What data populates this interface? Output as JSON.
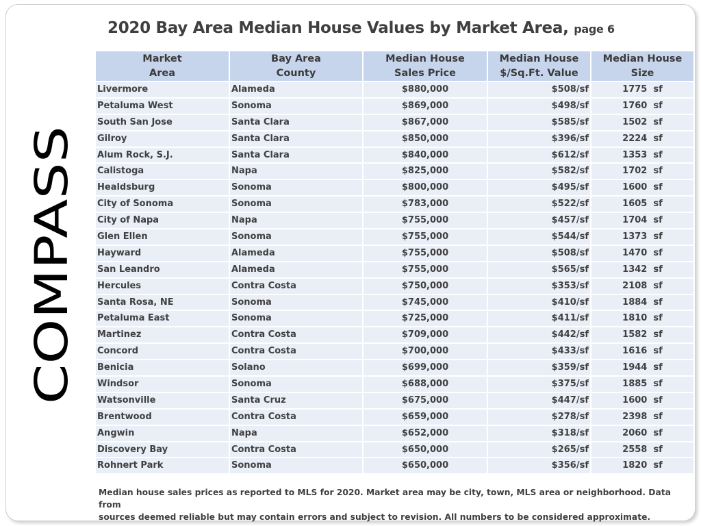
{
  "title": {
    "main": "2020 Bay Area Median House Values by Market Area,",
    "suffix": "page 6"
  },
  "logo_text": "COMPASS",
  "table": {
    "headers": [
      {
        "line1": "Market",
        "line2": "Area"
      },
      {
        "line1": "Bay Area",
        "line2": "County"
      },
      {
        "line1": "Median House",
        "line2": "Sales Price"
      },
      {
        "line1": "Median House",
        "line2": "$/Sq.Ft. Value"
      },
      {
        "line1": "Median House",
        "line2": "Size"
      }
    ],
    "rows": [
      [
        "Livermore",
        "Alameda",
        "$880,000",
        "$508/sf",
        "1775  sf"
      ],
      [
        "Petaluma West",
        "Sonoma",
        "$869,000",
        "$498/sf",
        "1760  sf"
      ],
      [
        "South San Jose",
        "Santa Clara",
        "$867,000",
        "$585/sf",
        "1502  sf"
      ],
      [
        "Gilroy",
        "Santa Clara",
        "$850,000",
        "$396/sf",
        "2224  sf"
      ],
      [
        "Alum Rock, S.J.",
        "Santa Clara",
        "$840,000",
        "$612/sf",
        "1353  sf"
      ],
      [
        "Calistoga",
        "Napa",
        "$825,000",
        "$582/sf",
        "1702  sf"
      ],
      [
        "Healdsburg",
        "Sonoma",
        "$800,000",
        "$495/sf",
        "1600  sf"
      ],
      [
        "City of Sonoma",
        "Sonoma",
        "$783,000",
        "$522/sf",
        "1605  sf"
      ],
      [
        "City of Napa",
        "Napa",
        "$755,000",
        "$457/sf",
        "1704  sf"
      ],
      [
        "Glen Ellen",
        "Sonoma",
        "$755,000",
        "$544/sf",
        "1373  sf"
      ],
      [
        "Hayward",
        "Alameda",
        "$755,000",
        "$508/sf",
        "1470  sf"
      ],
      [
        "San Leandro",
        "Alameda",
        "$755,000",
        "$565/sf",
        "1342  sf"
      ],
      [
        "Hercules",
        "Contra Costa",
        "$750,000",
        "$353/sf",
        "2108  sf"
      ],
      [
        "Santa Rosa, NE",
        "Sonoma",
        "$745,000",
        "$410/sf",
        "1884  sf"
      ],
      [
        "Petaluma East",
        "Sonoma",
        "$725,000",
        "$411/sf",
        "1810  sf"
      ],
      [
        "Martinez",
        "Contra Costa",
        "$709,000",
        "$442/sf",
        "1582  sf"
      ],
      [
        "Concord",
        "Contra Costa",
        "$700,000",
        "$433/sf",
        "1616  sf"
      ],
      [
        "Benicia",
        "Solano",
        "$699,000",
        "$359/sf",
        "1944  sf"
      ],
      [
        "Windsor",
        "Sonoma",
        "$688,000",
        "$375/sf",
        "1885  sf"
      ],
      [
        "Watsonville",
        "Santa Cruz",
        "$675,000",
        "$447/sf",
        "1600  sf"
      ],
      [
        "Brentwood",
        "Contra Costa",
        "$659,000",
        "$278/sf",
        "2398  sf"
      ],
      [
        "Angwin",
        "Napa",
        "$652,000",
        "$318/sf",
        "2060  sf"
      ],
      [
        "Discovery Bay",
        "Contra Costa",
        "$650,000",
        "$265/sf",
        "2558  sf"
      ],
      [
        "Rohnert Park",
        "Sonoma",
        "$650,000",
        "$356/sf",
        "1820  sf"
      ]
    ]
  },
  "footer": {
    "line1": "Median house sales prices as  reported to MLS for 2020.  Market area may be city, town, MLS area or neighborhood. Data from",
    "line2": "sources deemed reliable but may contain errors and subject to revision. All numbers to be considered approximate."
  },
  "colors": {
    "header_bg": "#c6d5ec",
    "row_bg": "#e9eef7",
    "text": "#404040",
    "logo": "#000000"
  }
}
